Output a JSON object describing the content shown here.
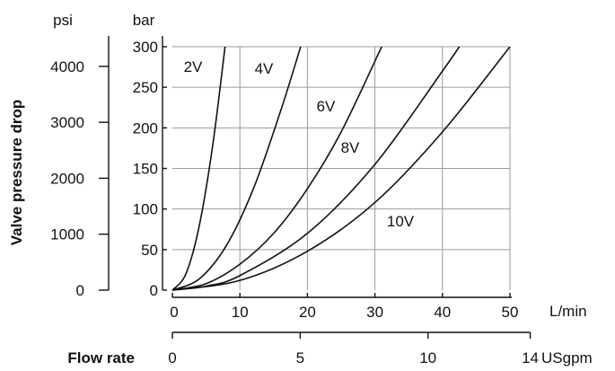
{
  "chart_data": {
    "type": "line",
    "ylabel": "Valve pressure drop",
    "xlabel": "Flow rate",
    "x_unit_primary": "L/min",
    "x_unit_secondary": "USgpm",
    "y_unit_primary": "bar",
    "y_unit_secondary": "psi",
    "xlim": [
      0,
      50
    ],
    "ylim": [
      0,
      300
    ],
    "x_ticks": [
      "10",
      "20",
      "30",
      "40",
      "50"
    ],
    "x_zero": "0",
    "y_ticks": [
      "0",
      "50",
      "100",
      "150",
      "200",
      "250",
      "300"
    ],
    "x2_ticks": [
      "0",
      "5",
      "10",
      "14"
    ],
    "psi_ticks": [
      "0",
      "1000",
      "2000",
      "3000",
      "4000"
    ],
    "grid": true,
    "series": [
      {
        "name": "2V",
        "x": [
          0,
          2,
          4,
          6,
          7.8
        ],
        "y": [
          0,
          20,
          80,
          180,
          300
        ]
      },
      {
        "name": "4V",
        "x": [
          0,
          4,
          8,
          12,
          16,
          19
        ],
        "y": [
          0,
          14,
          55,
          125,
          220,
          300
        ]
      },
      {
        "name": "6V",
        "x": [
          0,
          5,
          10,
          15,
          20,
          25,
          31
        ],
        "y": [
          0,
          8,
          32,
          70,
          125,
          195,
          300
        ]
      },
      {
        "name": "8V",
        "x": [
          0,
          5,
          10,
          20,
          30,
          40,
          42.5
        ],
        "y": [
          0,
          5,
          18,
          70,
          155,
          270,
          300
        ]
      },
      {
        "name": "10V",
        "x": [
          0,
          10,
          20,
          30,
          40,
          50
        ],
        "y": [
          0,
          12,
          48,
          108,
          195,
          300
        ]
      }
    ]
  }
}
